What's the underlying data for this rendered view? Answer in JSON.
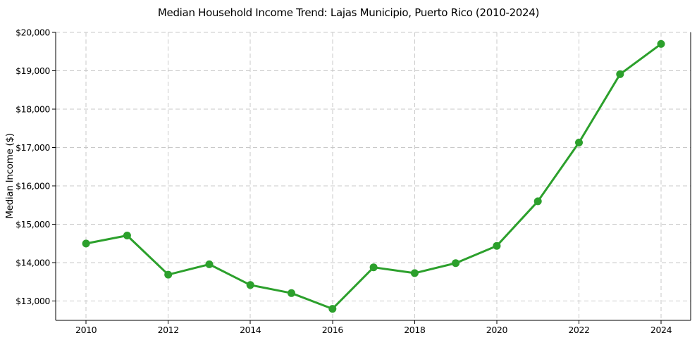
{
  "chart_data": {
    "type": "line",
    "title": "Median Household Income Trend: Lajas Municipio, Puerto Rico (2010-2024)",
    "xlabel": "",
    "ylabel": "Median Income ($)",
    "x": [
      2010,
      2011,
      2012,
      2013,
      2014,
      2015,
      2016,
      2017,
      2018,
      2019,
      2020,
      2021,
      2022,
      2023,
      2024
    ],
    "series": [
      {
        "name": "Median Income ($)",
        "values": [
          14500,
          14710,
          13690,
          13960,
          13420,
          13210,
          12800,
          13880,
          13730,
          13990,
          14440,
          15600,
          17130,
          18910,
          19700
        ]
      }
    ],
    "x_ticks": [
      2010,
      2012,
      2014,
      2016,
      2018,
      2020,
      2022,
      2024
    ],
    "x_tick_labels": [
      "2010",
      "2012",
      "2014",
      "2016",
      "2018",
      "2020",
      "2022",
      "2024"
    ],
    "y_ticks": [
      13000,
      14000,
      15000,
      16000,
      17000,
      18000,
      19000,
      20000
    ],
    "y_tick_labels": [
      "$13,000",
      "$14,000",
      "$15,000",
      "$16,000",
      "$17,000",
      "$18,000",
      "$19,000",
      "$20,000"
    ],
    "xlim": [
      2009.26,
      2024.72
    ],
    "ylim": [
      12500,
      20000
    ],
    "grid": true,
    "grid_linestyle": "dashed",
    "legend_position": "none",
    "line_color": "#2ca02c",
    "marker": "circle",
    "grid_color": "#c9c9c9",
    "background_color": "#ffffff",
    "spine_color": "#000000"
  }
}
